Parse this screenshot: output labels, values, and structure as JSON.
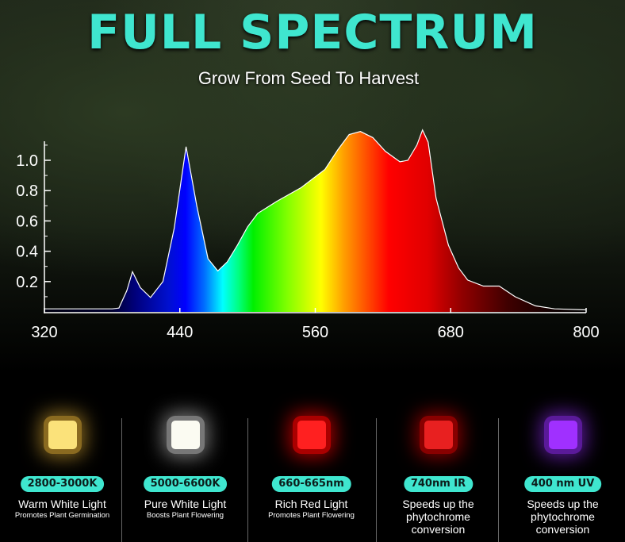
{
  "header": {
    "title": "FULL SPECTRUM",
    "subtitle": "Grow From Seed To Harvest"
  },
  "colors": {
    "accent": "#3fe6cf",
    "background": "#000000"
  },
  "chart_data": {
    "type": "area",
    "title": "",
    "xlabel": "",
    "ylabel": "",
    "xlim": [
      320,
      800
    ],
    "ylim": [
      0,
      1.2
    ],
    "x_ticks": [
      "320",
      "440",
      "560",
      "680",
      "800"
    ],
    "y_ticks": [
      "0.2",
      "0.4",
      "0.6",
      "0.8",
      "1.0"
    ],
    "grid": false,
    "fill": "visible-spectrum gradient by wavelength",
    "x": [
      320,
      340,
      360,
      380,
      386,
      393,
      398,
      405,
      414,
      425,
      435,
      445.5,
      455,
      465,
      473.6,
      482,
      491,
      500,
      509,
      526,
      547.5,
      568.6,
      580,
      590,
      600,
      611,
      622,
      635,
      642,
      650,
      655,
      660,
      667,
      678,
      687,
      695,
      709,
      723,
      737,
      755,
      772,
      800
    ],
    "y": [
      0.02,
      0.02,
      0.02,
      0.02,
      0.025,
      0.14,
      0.265,
      0.16,
      0.095,
      0.2,
      0.55,
      1.09,
      0.7,
      0.35,
      0.27,
      0.33,
      0.44,
      0.56,
      0.65,
      0.73,
      0.82,
      0.94,
      1.07,
      1.17,
      1.19,
      1.15,
      1.06,
      0.99,
      1.0,
      1.1,
      1.2,
      1.12,
      0.75,
      0.44,
      0.29,
      0.21,
      0.17,
      0.17,
      0.1,
      0.04,
      0.02,
      0.013
    ]
  },
  "leds": [
    {
      "badge": "2800-3000K",
      "label": "Warm White Light",
      "sub": "Promotes Plant Germination",
      "color": "#fbe27a",
      "glow": "#8a6a20"
    },
    {
      "badge": "5000-6600K",
      "label": "Pure White Light",
      "sub": "Boosts Plant Flowering",
      "color": "#fbfbf2",
      "glow": "#777777"
    },
    {
      "badge": "660-665nm",
      "label": "Rich Red Light",
      "sub": "Promotes Plant Flowering",
      "color": "#ff2020",
      "glow": "#aa0000"
    },
    {
      "badge": "740nm IR",
      "label": "Speeds up the phytochrome conversion",
      "sub": "",
      "color": "#e82020",
      "glow": "#880000"
    },
    {
      "badge": "400 nm UV",
      "label": "Speeds up the phytochrome conversion",
      "sub": "",
      "color": "#a030ff",
      "glow": "#5a1a99"
    }
  ]
}
